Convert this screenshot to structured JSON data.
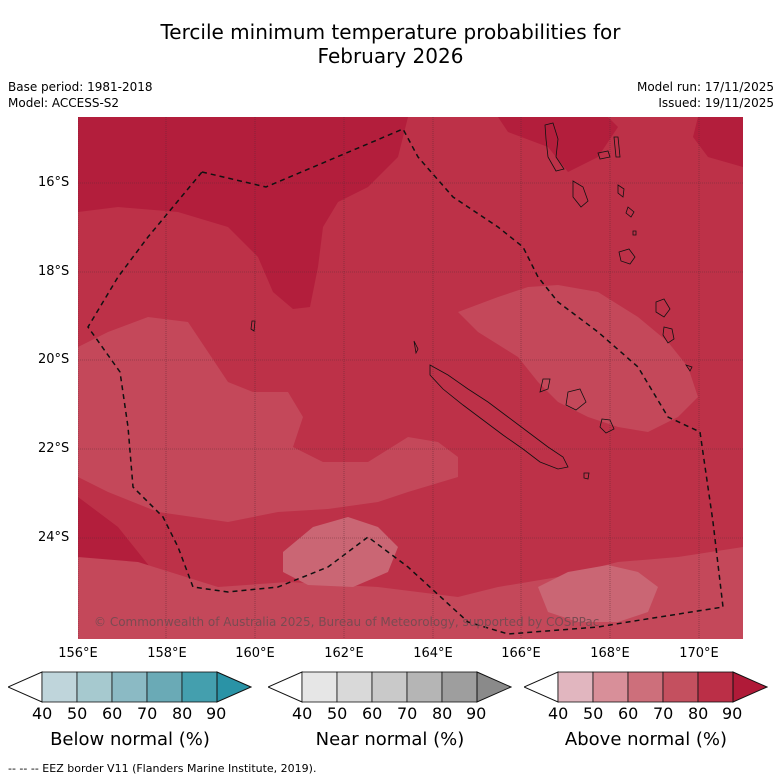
{
  "title": {
    "line1": "Tercile minimum temperature probabilities for",
    "line2": "February 2026"
  },
  "meta": {
    "base_period": "Base period: 1981-2018",
    "model": "Model: ACCESS-S2",
    "model_run": "Model run: 17/11/2025",
    "issued": "Issued: 19/11/2025"
  },
  "map": {
    "lat_labels": [
      "16°S",
      "18°S",
      "20°S",
      "22°S",
      "24°S"
    ],
    "lon_labels": [
      "156°E",
      "158°E",
      "160°E",
      "162°E",
      "164°E",
      "166°E",
      "168°E",
      "170°E"
    ],
    "copyright": "© Commonwealth of Australia 2025, Bureau of Meteorology, supported by COSPPac",
    "layer_colors": {
      "above_90": "#b31e3c",
      "above_80": "#bd3148",
      "above_70": "#c4485a",
      "above_60": "#ca6674"
    }
  },
  "colorbars": [
    {
      "title": "Below normal (%)",
      "ticks": [
        "40",
        "50",
        "60",
        "70",
        "80",
        "90"
      ],
      "colors": [
        "#ffffff",
        "#bfd5db",
        "#a6c9cf",
        "#8bbac4",
        "#6aaab6",
        "#449fae",
        "#2a93a6"
      ]
    },
    {
      "title": "Near normal (%)",
      "ticks": [
        "40",
        "50",
        "60",
        "70",
        "80",
        "90"
      ],
      "colors": [
        "#ffffff",
        "#e6e6e6",
        "#d9d9d9",
        "#c9c9c9",
        "#b5b5b5",
        "#9e9e9e",
        "#8a8a8a"
      ]
    },
    {
      "title": "Above normal (%)",
      "ticks": [
        "40",
        "50",
        "60",
        "70",
        "80",
        "90"
      ],
      "colors": [
        "#ffffff",
        "#e1b6bf",
        "#d88f99",
        "#cd6f7b",
        "#c4505f",
        "#bb2f47",
        "#b01a38"
      ]
    }
  ],
  "footnote": "--  --  -- EEZ border V11 (Flanders Marine Institute, 2019)."
}
